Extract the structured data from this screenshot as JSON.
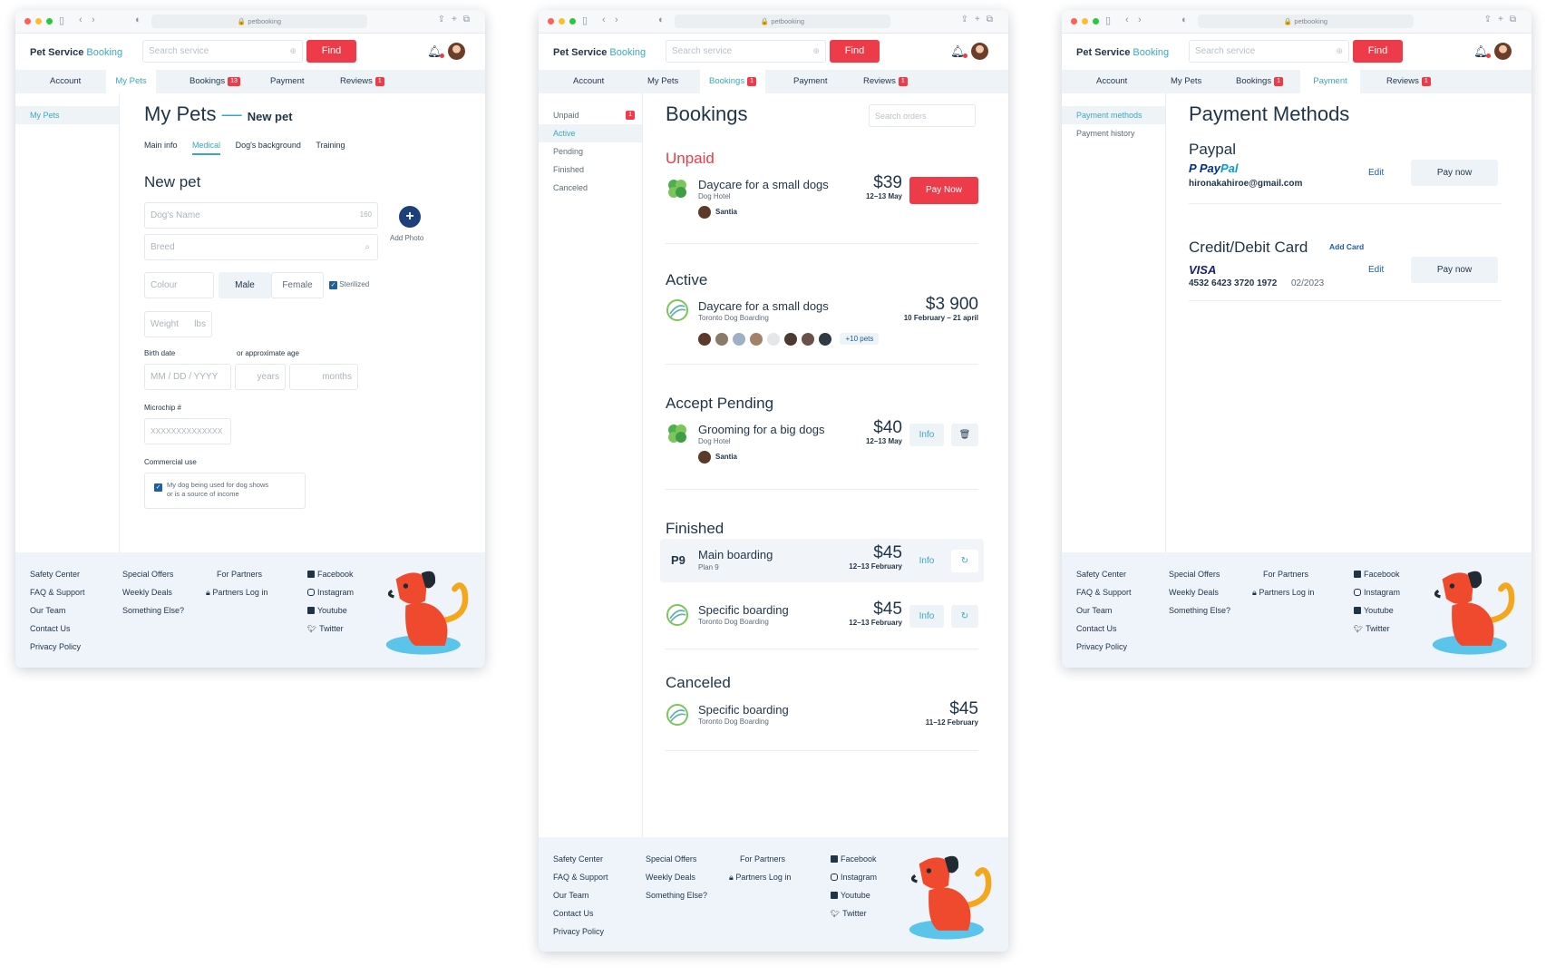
{
  "browser": {
    "url": "petbooking"
  },
  "header": {
    "brand_main": "Pet Service",
    "brand_accent": "Booking",
    "search_placeholder": "Search service",
    "find_label": "Find"
  },
  "nav": {
    "account": "Account",
    "my_pets": "My Pets",
    "bookings": "Bookings",
    "bookings_badge_1": "13",
    "bookings_badge": "1",
    "payment": "Payment",
    "reviews": "Reviews",
    "reviews_badge": "1"
  },
  "footer": {
    "col1": [
      "Safety Center",
      "FAQ & Support",
      "Our Team",
      "Contact Us",
      "Privacy Policy"
    ],
    "col2": [
      "Special Offers",
      "Weekly Deals",
      "Something Else?"
    ],
    "col3": [
      "For Partners",
      "Partners Log in"
    ],
    "col4": [
      "Facebook",
      "Instagram",
      "Youtube",
      "Twitter"
    ]
  },
  "pets": {
    "side_item": "My Pets",
    "title": "My Pets",
    "dash": "—",
    "subtitle": "New pet",
    "subtabs": [
      "Main info",
      "Medical",
      "Dog's background",
      "Training"
    ],
    "form_title": "New pet",
    "name_placeholder": "Dog's Name",
    "name_counter": "160",
    "breed_placeholder": "Breed",
    "add_photo": "Add Photo",
    "colour_placeholder": "Colour",
    "male": "Male",
    "female": "Female",
    "sterilized": "Sterilized",
    "weight_placeholder": "Weight",
    "weight_unit": "lbs",
    "birth_label": "Birth date",
    "approx_label": "or approximate age",
    "date_placeholder": "MM / DD / YYYY",
    "years": "years",
    "months": "months",
    "microchip_label": "Microchip #",
    "microchip_placeholder": "XXXXXXXXXXXXXX",
    "commercial_label": "Commercial use",
    "commercial_text_1": "My dog being used for dog shows",
    "commercial_text_2": "or is a source of income"
  },
  "bookings": {
    "side": [
      {
        "label": "Unpaid",
        "badge": "1"
      },
      {
        "label": "Active"
      },
      {
        "label": "Pending"
      },
      {
        "label": "Finished"
      },
      {
        "label": "Canceled"
      }
    ],
    "title": "Bookings",
    "search_placeholder": "Search orders",
    "unpaid_title": "Unpaid",
    "unpaid": {
      "name": "Daycare for a small dogs",
      "place": "Dog Hotel",
      "price": "$39",
      "dates": "12–13 May",
      "pet": "Santia",
      "action": "Pay Now"
    },
    "active_title": "Active",
    "active": {
      "name": "Daycare for a small dogs",
      "place": "Toronto Dog Boarding",
      "price": "$3 900",
      "dates": "10 February – 21 april",
      "more_pets": "+10 pets"
    },
    "pending_title": "Accept Pending",
    "pending": {
      "name": "Grooming for a big dogs",
      "place": "Dog Hotel",
      "price": "$40",
      "dates": "12–13 May",
      "pet": "Santia",
      "info": "Info"
    },
    "finished_title": "Finished",
    "finished": [
      {
        "logo": "P9",
        "name": "Main boarding",
        "place": "Plan 9",
        "price": "$45",
        "dates": "12–13 February",
        "info": "Info"
      },
      {
        "name": "Specific boarding",
        "place": "Toronto Dog Boarding",
        "price": "$45",
        "dates": "12–13 February",
        "info": "Info"
      }
    ],
    "canceled_title": "Canceled",
    "canceled": {
      "name": "Specific boarding",
      "place": "Toronto Dog Boarding",
      "price": "$45",
      "dates": "11–12 February"
    }
  },
  "payment": {
    "side": [
      "Payment methods",
      "Payment history"
    ],
    "title": "Payment Methods",
    "paypal_title": "Paypal",
    "paypal_logo_1": "Pay",
    "paypal_logo_2": "Pal",
    "paypal_email": "hironakahiroe@gmail.com",
    "edit": "Edit",
    "pay_now": "Pay now",
    "card_title": "Credit/Debit Card",
    "add_card": "Add Card",
    "visa": "VISA",
    "card_number": "4532 6423 3720 1972",
    "card_exp": "02/2023"
  },
  "colors": {
    "brand_teal": "#3aa7c2",
    "find_red": "#ee3b4a",
    "navy": "#1f3447",
    "tab_bg": "#eef3f8"
  },
  "icons": [
    "search-icon",
    "bell-icon",
    "plus-icon",
    "checkbox-icon",
    "trash-icon",
    "refresh-icon",
    "lock-icon",
    "facebook-icon",
    "instagram-icon",
    "youtube-icon",
    "twitter-icon",
    "dog-mascot-icon"
  ]
}
